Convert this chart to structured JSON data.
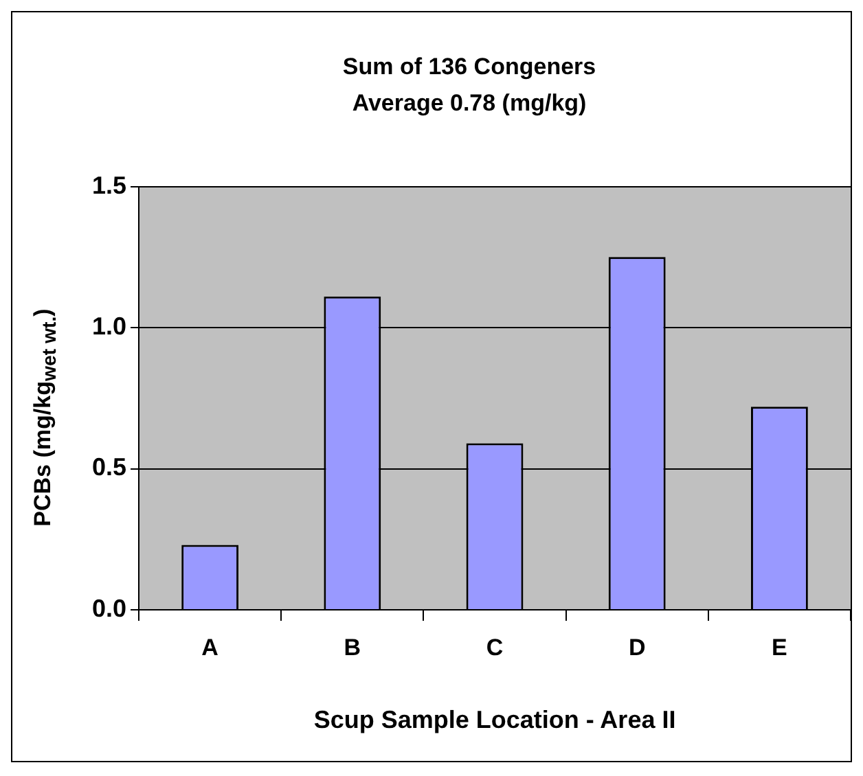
{
  "chart_data": {
    "type": "bar",
    "title": "Sum of 136 Congeners",
    "subtitle": "Average 0.78 (mg/kg)",
    "xlabel": "Scup Sample Location - Area II",
    "ylabel": "PCBs (mg/kg$_{wet wt.}$)",
    "categories": [
      "A",
      "B",
      "C",
      "D",
      "E"
    ],
    "values": [
      0.23,
      1.11,
      0.59,
      1.25,
      0.72
    ],
    "color": "#9999ff",
    "ylim": [
      0,
      1.5
    ],
    "yticks": [
      {
        "value": 0,
        "label": "0.0"
      },
      0.5,
      {
        "value": 1,
        "label": "1.0"
      },
      1.5
    ],
    "grid": "y",
    "legend": false
  }
}
